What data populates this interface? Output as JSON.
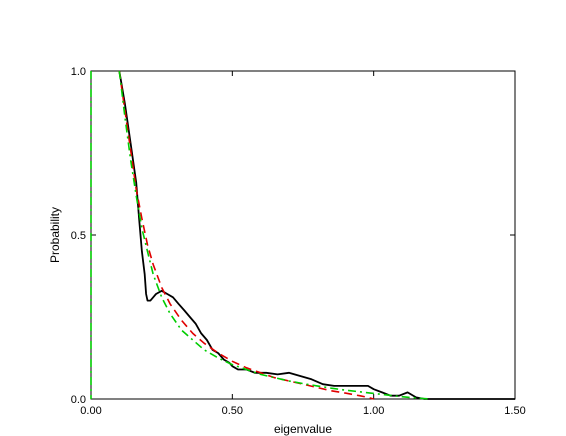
{
  "chart_data": {
    "type": "line",
    "title": "",
    "xlabel": "eigenvalue",
    "ylabel": "Probability",
    "xlim": [
      0,
      1.5
    ],
    "ylim": [
      0,
      1.0
    ],
    "xticks": [
      0,
      0.5,
      1.0,
      1.5
    ],
    "xtick_labels": [
      "0.00",
      "0.50",
      "1.00",
      "1.50"
    ],
    "yticks": [
      0,
      0.5,
      1.0
    ],
    "ytick_labels": [
      "0.0",
      "0.5",
      "1.0"
    ],
    "grid": false,
    "series": [
      {
        "color": "#000000",
        "dash": "solid",
        "points": [
          [
            0.1,
            1.0
          ],
          [
            0.12,
            0.9
          ],
          [
            0.14,
            0.78
          ],
          [
            0.16,
            0.66
          ],
          [
            0.17,
            0.55
          ],
          [
            0.18,
            0.45
          ],
          [
            0.19,
            0.38
          ],
          [
            0.195,
            0.32
          ],
          [
            0.2,
            0.3
          ],
          [
            0.21,
            0.3
          ],
          [
            0.22,
            0.31
          ],
          [
            0.23,
            0.32
          ],
          [
            0.25,
            0.33
          ],
          [
            0.27,
            0.32
          ],
          [
            0.29,
            0.31
          ],
          [
            0.31,
            0.29
          ],
          [
            0.33,
            0.27
          ],
          [
            0.35,
            0.25
          ],
          [
            0.37,
            0.23
          ],
          [
            0.39,
            0.2
          ],
          [
            0.41,
            0.18
          ],
          [
            0.43,
            0.15
          ],
          [
            0.45,
            0.14
          ],
          [
            0.47,
            0.12
          ],
          [
            0.49,
            0.11
          ],
          [
            0.5,
            0.1
          ],
          [
            0.52,
            0.09
          ],
          [
            0.55,
            0.09
          ],
          [
            0.58,
            0.08
          ],
          [
            0.62,
            0.08
          ],
          [
            0.66,
            0.075
          ],
          [
            0.7,
            0.08
          ],
          [
            0.74,
            0.07
          ],
          [
            0.78,
            0.06
          ],
          [
            0.82,
            0.045
          ],
          [
            0.86,
            0.04
          ],
          [
            0.9,
            0.04
          ],
          [
            0.94,
            0.04
          ],
          [
            0.98,
            0.04
          ],
          [
            1.0,
            0.03
          ],
          [
            1.03,
            0.02
          ],
          [
            1.06,
            0.01
          ],
          [
            1.09,
            0.01
          ],
          [
            1.12,
            0.02
          ],
          [
            1.15,
            0.005
          ],
          [
            1.18,
            0.0
          ],
          [
            1.5,
            0.0
          ]
        ]
      },
      {
        "color": "#e00000",
        "dash": "dashed",
        "points": [
          [
            0.1,
            1.0
          ],
          [
            0.12,
            0.88
          ],
          [
            0.14,
            0.76
          ],
          [
            0.16,
            0.64
          ],
          [
            0.18,
            0.55
          ],
          [
            0.2,
            0.47
          ],
          [
            0.22,
            0.41
          ],
          [
            0.25,
            0.34
          ],
          [
            0.28,
            0.29
          ],
          [
            0.32,
            0.24
          ],
          [
            0.36,
            0.2
          ],
          [
            0.4,
            0.17
          ],
          [
            0.45,
            0.14
          ],
          [
            0.5,
            0.115
          ],
          [
            0.55,
            0.095
          ],
          [
            0.6,
            0.08
          ],
          [
            0.65,
            0.065
          ],
          [
            0.7,
            0.055
          ],
          [
            0.75,
            0.045
          ],
          [
            0.8,
            0.035
          ],
          [
            0.85,
            0.025
          ],
          [
            0.9,
            0.018
          ],
          [
            0.95,
            0.01
          ],
          [
            0.98,
            0.005
          ],
          [
            1.0,
            0.0
          ]
        ]
      },
      {
        "color": "#00cc00",
        "dash": "dashdot",
        "points": [
          [
            0.0,
            1.0
          ],
          [
            0.0,
            0.0
          ]
        ]
      },
      {
        "color": "#00cc00",
        "dash": "dashdot",
        "points": [
          [
            0.1,
            1.0
          ],
          [
            0.12,
            0.86
          ],
          [
            0.14,
            0.73
          ],
          [
            0.16,
            0.62
          ],
          [
            0.18,
            0.52
          ],
          [
            0.2,
            0.45
          ],
          [
            0.22,
            0.38
          ],
          [
            0.25,
            0.31
          ],
          [
            0.28,
            0.26
          ],
          [
            0.32,
            0.21
          ],
          [
            0.36,
            0.18
          ],
          [
            0.4,
            0.15
          ],
          [
            0.45,
            0.125
          ],
          [
            0.5,
            0.105
          ],
          [
            0.55,
            0.09
          ],
          [
            0.6,
            0.075
          ],
          [
            0.65,
            0.065
          ],
          [
            0.7,
            0.055
          ],
          [
            0.75,
            0.047
          ],
          [
            0.8,
            0.04
          ],
          [
            0.85,
            0.033
          ],
          [
            0.9,
            0.027
          ],
          [
            0.95,
            0.022
          ],
          [
            1.0,
            0.017
          ],
          [
            1.05,
            0.012
          ],
          [
            1.1,
            0.007
          ],
          [
            1.15,
            0.003
          ],
          [
            1.2,
            0.0
          ]
        ]
      }
    ]
  }
}
